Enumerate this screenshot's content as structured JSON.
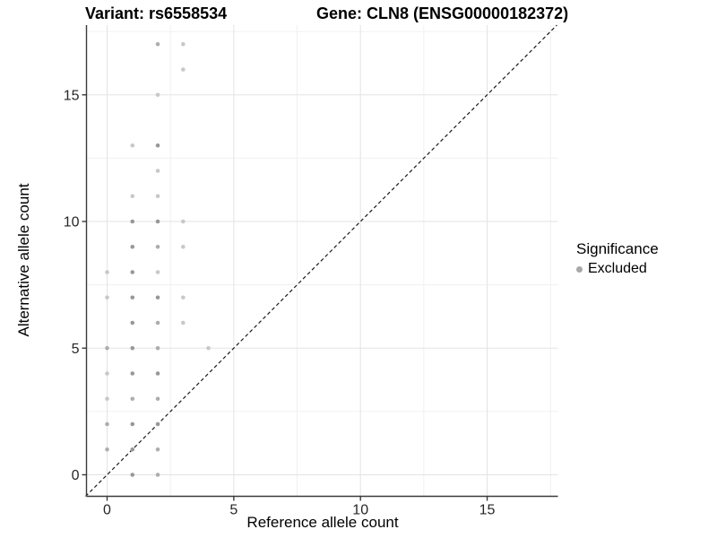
{
  "header": {
    "variant_title": "Variant: rs6558534",
    "gene_title": "Gene: CLN8 (ENSG00000182372)"
  },
  "axes": {
    "x_label": "Reference allele count",
    "y_label": "Alternative allele count",
    "x_tick_labels": [
      "0",
      "5",
      "10",
      "15"
    ],
    "y_tick_labels": [
      "0",
      "5",
      "10",
      "15"
    ]
  },
  "legend": {
    "title": "Significance",
    "items": [
      {
        "label": "Excluded",
        "swatch_color": "#a8a8a8"
      }
    ]
  },
  "colors": {
    "background": "#ffffff",
    "grid_major": "#e3e3e3",
    "grid_minor": "#f0f0f0",
    "axis_line": "#3a3a3a",
    "tick_text": "#262626",
    "identity_line": "#1a1a1a",
    "point_light": "#c8c8c8",
    "point_medium": "#adadad",
    "point_dark": "#989898"
  },
  "chart_data": {
    "type": "scatter",
    "title_left": "Variant: rs6558534",
    "title_right": "Gene: CLN8 (ENSG00000182372)",
    "xlabel": "Reference allele count",
    "ylabel": "Alternative allele count",
    "xlim": [
      -0.85,
      17.85
    ],
    "ylim": [
      -0.85,
      17.85
    ],
    "x_major_ticks": [
      0,
      5,
      10,
      15
    ],
    "y_major_ticks": [
      0,
      5,
      10,
      15
    ],
    "minor_grid_positions": [
      2.5,
      7.5,
      12.5,
      17.5
    ],
    "grid": "major and minor, light gray on white",
    "legend_position": "right",
    "reference_line": {
      "kind": "identity y=x",
      "style": "dashed",
      "color": "#1a1a1a"
    },
    "series": [
      {
        "name": "Excluded",
        "points": [
          {
            "x": 0,
            "y": 1,
            "shade": "medium"
          },
          {
            "x": 0,
            "y": 2,
            "shade": "medium"
          },
          {
            "x": 0,
            "y": 3,
            "shade": "light"
          },
          {
            "x": 0,
            "y": 4,
            "shade": "light"
          },
          {
            "x": 0,
            "y": 5,
            "shade": "medium"
          },
          {
            "x": 0,
            "y": 7,
            "shade": "light"
          },
          {
            "x": 0,
            "y": 8,
            "shade": "light"
          },
          {
            "x": 1,
            "y": 0,
            "shade": "dark"
          },
          {
            "x": 1,
            "y": 1,
            "shade": "dark"
          },
          {
            "x": 1,
            "y": 2,
            "shade": "dark"
          },
          {
            "x": 1,
            "y": 3,
            "shade": "medium"
          },
          {
            "x": 1,
            "y": 4,
            "shade": "dark"
          },
          {
            "x": 1,
            "y": 5,
            "shade": "dark"
          },
          {
            "x": 1,
            "y": 6,
            "shade": "dark"
          },
          {
            "x": 1,
            "y": 7,
            "shade": "dark"
          },
          {
            "x": 1,
            "y": 8,
            "shade": "dark"
          },
          {
            "x": 1,
            "y": 9,
            "shade": "dark"
          },
          {
            "x": 1,
            "y": 10,
            "shade": "dark"
          },
          {
            "x": 1,
            "y": 11,
            "shade": "light"
          },
          {
            "x": 1,
            "y": 13,
            "shade": "light"
          },
          {
            "x": 2,
            "y": 0,
            "shade": "medium"
          },
          {
            "x": 2,
            "y": 1,
            "shade": "medium"
          },
          {
            "x": 2,
            "y": 2,
            "shade": "dark"
          },
          {
            "x": 2,
            "y": 3,
            "shade": "medium"
          },
          {
            "x": 2,
            "y": 4,
            "shade": "dark"
          },
          {
            "x": 2,
            "y": 5,
            "shade": "medium"
          },
          {
            "x": 2,
            "y": 6,
            "shade": "medium"
          },
          {
            "x": 2,
            "y": 7,
            "shade": "dark"
          },
          {
            "x": 2,
            "y": 8,
            "shade": "light"
          },
          {
            "x": 2,
            "y": 9,
            "shade": "medium"
          },
          {
            "x": 2,
            "y": 10,
            "shade": "dark"
          },
          {
            "x": 2,
            "y": 11,
            "shade": "light"
          },
          {
            "x": 2,
            "y": 12,
            "shade": "light"
          },
          {
            "x": 2,
            "y": 13,
            "shade": "dark"
          },
          {
            "x": 2,
            "y": 15,
            "shade": "light"
          },
          {
            "x": 2,
            "y": 17,
            "shade": "medium"
          },
          {
            "x": 3,
            "y": 6,
            "shade": "light"
          },
          {
            "x": 3,
            "y": 7,
            "shade": "light"
          },
          {
            "x": 3,
            "y": 9,
            "shade": "light"
          },
          {
            "x": 3,
            "y": 10,
            "shade": "light"
          },
          {
            "x": 3,
            "y": 16,
            "shade": "light"
          },
          {
            "x": 3,
            "y": 17,
            "shade": "light"
          },
          {
            "x": 4,
            "y": 5,
            "shade": "light"
          }
        ]
      }
    ]
  }
}
